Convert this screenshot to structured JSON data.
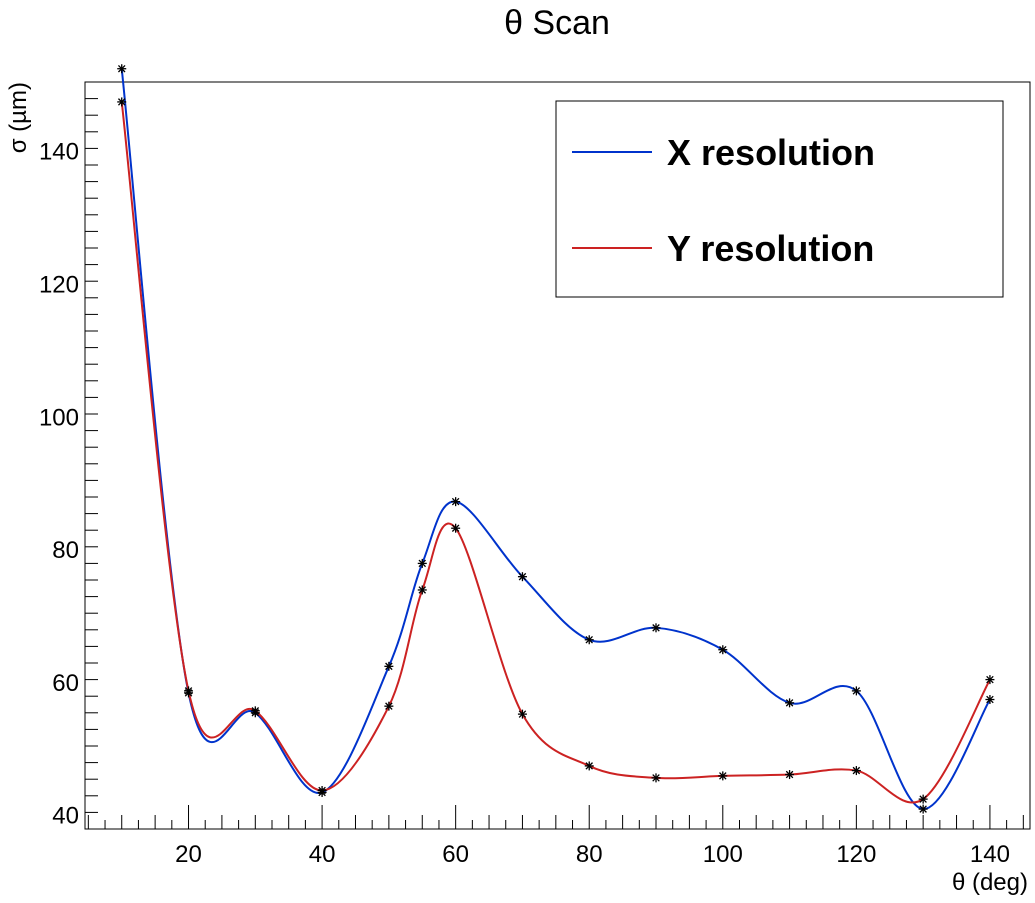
{
  "chart_data": {
    "type": "line",
    "title": "θ Scan",
    "xlabel": "θ (deg)",
    "ylabel": "σ (µm)",
    "xlim": [
      4.5,
      146
    ],
    "ylim": [
      38,
      150.5
    ],
    "x_ticks": [
      20,
      40,
      60,
      80,
      100,
      120,
      140
    ],
    "y_ticks": [
      40,
      60,
      80,
      100,
      120,
      140
    ],
    "grid": false,
    "legend_position": "top-right",
    "marker": "asterisk",
    "series": [
      {
        "name": "X resolution",
        "color": "#0033cc",
        "x": [
          10,
          20,
          30,
          40,
          50,
          55,
          60,
          70,
          80,
          90,
          100,
          110,
          120,
          130,
          140
        ],
        "y": [
          152.5,
          58.5,
          55.5,
          43.5,
          62.5,
          78.0,
          87.3,
          76.0,
          66.5,
          68.3,
          65.0,
          57.0,
          58.8,
          41.0,
          57.5
        ]
      },
      {
        "name": "Y resolution",
        "color": "#cc2222",
        "x": [
          10,
          20,
          30,
          40,
          50,
          55,
          60,
          70,
          80,
          90,
          100,
          110,
          120,
          130,
          140
        ],
        "y": [
          147.5,
          58.8,
          55.8,
          43.8,
          56.5,
          74.0,
          83.3,
          55.3,
          47.5,
          45.7,
          46.0,
          46.2,
          46.8,
          42.5,
          60.5
        ]
      }
    ]
  }
}
